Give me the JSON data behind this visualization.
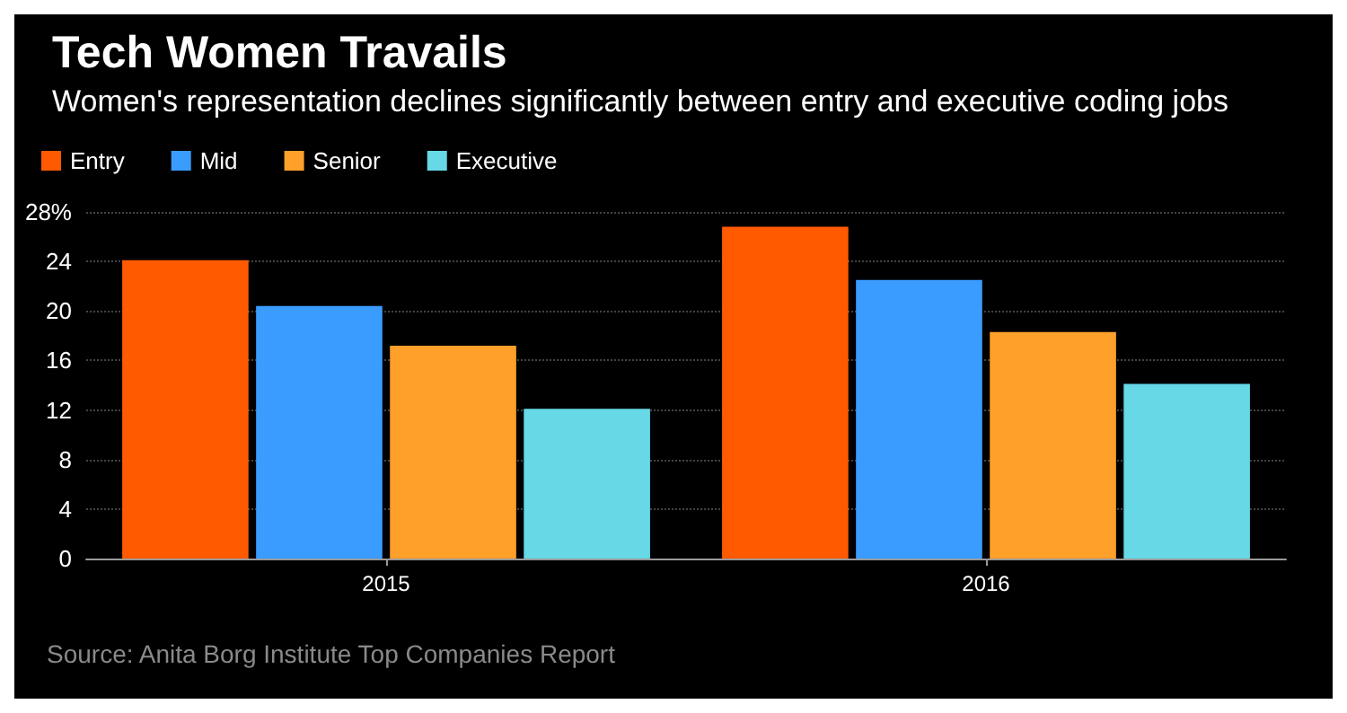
{
  "chart_data": {
    "type": "bar",
    "title": "Tech Women Travails",
    "subtitle": "Women's representation declines significantly between entry and executive coding jobs",
    "categories": [
      "2015",
      "2016"
    ],
    "series": [
      {
        "name": "Entry",
        "color": "#ff5a00",
        "values": [
          24.1,
          26.8
        ]
      },
      {
        "name": "Mid",
        "color": "#3a9cff",
        "values": [
          20.4,
          22.5
        ]
      },
      {
        "name": "Senior",
        "color": "#ffa02a",
        "values": [
          17.2,
          18.3
        ]
      },
      {
        "name": "Executive",
        "color": "#66d8e6",
        "values": [
          12.1,
          14.1
        ]
      }
    ],
    "ylim": [
      0,
      28
    ],
    "yticks": [
      0,
      4,
      8,
      12,
      16,
      20,
      24,
      {
        "value": 28,
        "label": "28%"
      }
    ],
    "grid": "y",
    "legend": "top left",
    "annotations": [
      "Source: Anita Borg Institute Top Companies Report"
    ]
  }
}
